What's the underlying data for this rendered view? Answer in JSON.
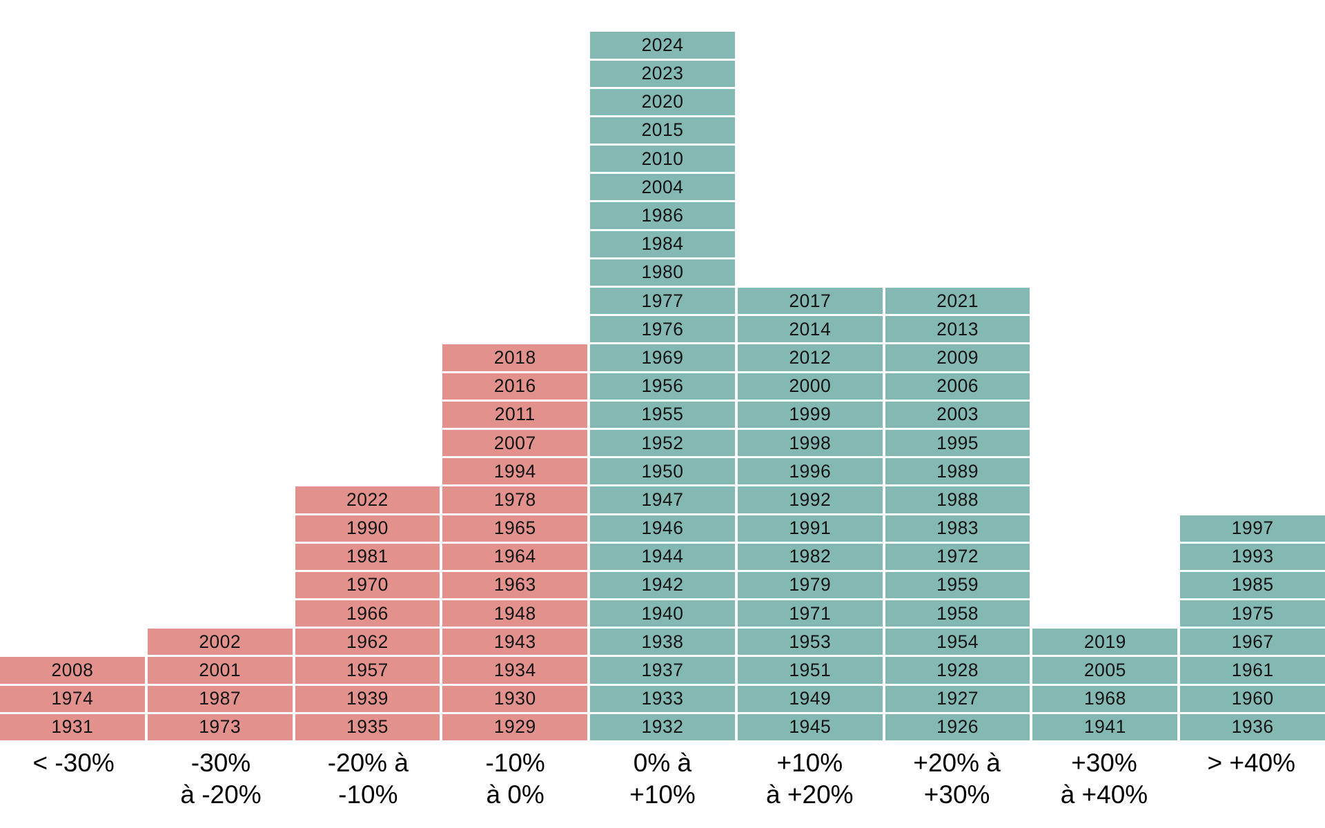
{
  "chart_data": {
    "type": "bar",
    "title": "",
    "subtitle": "",
    "xlabel": "",
    "ylabel": "",
    "legend": "none",
    "grid": false,
    "description": "Histogram of annual returns: every year from 1926 to 2024 is stacked as a labeled cell in its return-range bucket; negative buckets are salmon, positive buckets are teal",
    "max_column_count": 25,
    "categories": [
      "< -30%",
      "-30% à -20%",
      "-20% à -10%",
      "-10% à 0%",
      "0% à +10%",
      "+10% à +20%",
      "+20% à +30%",
      "+30% à +40%",
      "> +40%"
    ],
    "columns": [
      {
        "range": "< -30%",
        "label_lines": [
          "< -30%"
        ],
        "sentiment": "negative",
        "count": 3,
        "years_top_to_bottom": [
          "2008",
          "1974",
          "1931"
        ]
      },
      {
        "range": "-30% à -20%",
        "label_lines": [
          "-30%",
          "à -20%"
        ],
        "sentiment": "negative",
        "count": 4,
        "years_top_to_bottom": [
          "2002",
          "2001",
          "1987",
          "1973"
        ]
      },
      {
        "range": "-20% à -10%",
        "label_lines": [
          "-20% à",
          "-10%"
        ],
        "sentiment": "negative",
        "count": 9,
        "years_top_to_bottom": [
          "2022",
          "1990",
          "1981",
          "1970",
          "1966",
          "1962",
          "1957",
          "1939",
          "1935"
        ]
      },
      {
        "range": "-10% à 0%",
        "label_lines": [
          "-10%",
          "à 0%"
        ],
        "sentiment": "negative",
        "count": 14,
        "years_top_to_bottom": [
          "2018",
          "2016",
          "2011",
          "2007",
          "1994",
          "1978",
          "1965",
          "1964",
          "1963",
          "1948",
          "1943",
          "1934",
          "1930",
          "1929"
        ]
      },
      {
        "range": "0% à +10%",
        "label_lines": [
          "0% à",
          "+10%"
        ],
        "sentiment": "positive",
        "count": 25,
        "years_top_to_bottom": [
          "2024",
          "2023",
          "2020",
          "2015",
          "2010",
          "2004",
          "1986",
          "1984",
          "1980",
          "1977",
          "1976",
          "1969",
          "1956",
          "1955",
          "1952",
          "1950",
          "1947",
          "1946",
          "1944",
          "1942",
          "1940",
          "1938",
          "1937",
          "1933",
          "1932"
        ]
      },
      {
        "range": "+10% à +20%",
        "label_lines": [
          "+10%",
          "à +20%"
        ],
        "sentiment": "positive",
        "count": 16,
        "years_top_to_bottom": [
          "2017",
          "2014",
          "2012",
          "2000",
          "1999",
          "1998",
          "1996",
          "1992",
          "1991",
          "1982",
          "1979",
          "1971",
          "1953",
          "1951",
          "1949",
          "1945"
        ]
      },
      {
        "range": "+20% à +30%",
        "label_lines": [
          "+20% à",
          "+30%"
        ],
        "sentiment": "positive",
        "count": 16,
        "years_top_to_bottom": [
          "2021",
          "2013",
          "2009",
          "2006",
          "2003",
          "1995",
          "1989",
          "1988",
          "1983",
          "1972",
          "1959",
          "1958",
          "1954",
          "1928",
          "1927",
          "1926"
        ]
      },
      {
        "range": "+30% à +40%",
        "label_lines": [
          "+30%",
          "à +40%"
        ],
        "sentiment": "positive",
        "count": 4,
        "years_top_to_bottom": [
          "2019",
          "2005",
          "1968",
          "1941"
        ]
      },
      {
        "range": "> +40%",
        "label_lines": [
          "> +40%"
        ],
        "sentiment": "positive",
        "count": 8,
        "years_top_to_bottom": [
          "1997",
          "1993",
          "1985",
          "1975",
          "1967",
          "1961",
          "1960",
          "1936"
        ]
      }
    ],
    "colors": {
      "negative_bucket": "#E2918C",
      "positive_bucket": "#83B9B2",
      "cell_text": "#141414",
      "label_text": "#000000",
      "background": "#FFFFFF"
    }
  }
}
